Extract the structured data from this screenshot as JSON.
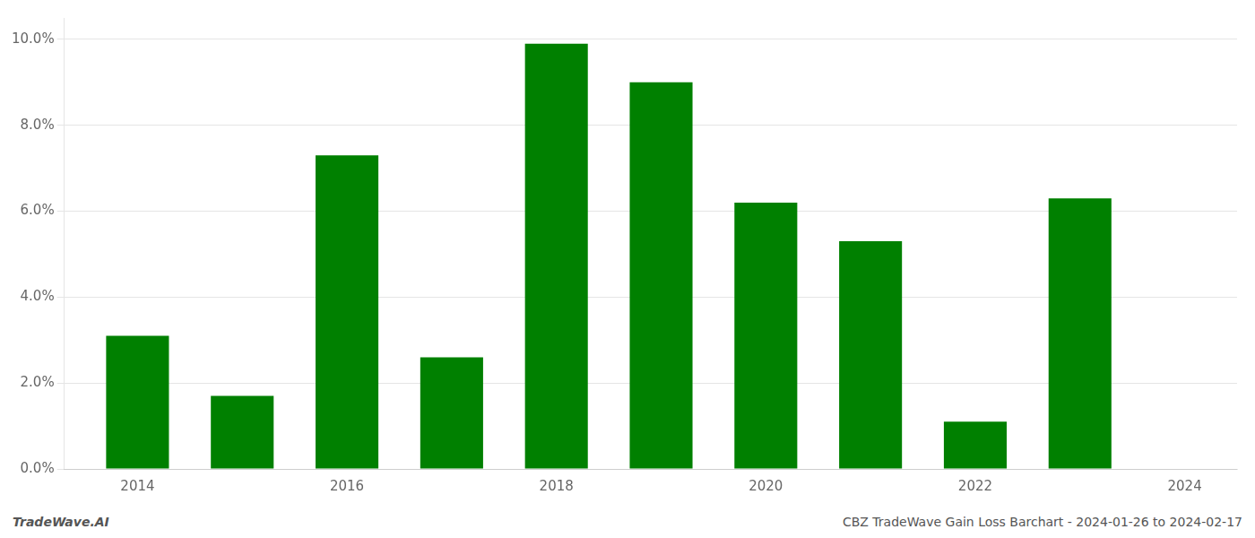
{
  "chart_data": {
    "type": "bar",
    "x": [
      2014,
      2015,
      2016,
      2017,
      2018,
      2019,
      2020,
      2021,
      2022,
      2023
    ],
    "values": [
      0.031,
      0.017,
      0.073,
      0.026,
      0.099,
      0.09,
      0.062,
      0.053,
      0.011,
      0.063
    ],
    "color": "#008000",
    "xlim": [
      2013.3,
      2024.5
    ],
    "xticks": [
      2014,
      2016,
      2018,
      2020,
      2022,
      2024
    ],
    "ylim": [
      0,
      0.105
    ],
    "yticks": [
      {
        "value": 0.0,
        "label": "0.0%"
      },
      {
        "value": 0.02,
        "label": "2.0%"
      },
      {
        "value": 0.04,
        "label": "4.0%"
      },
      {
        "value": 0.06,
        "label": "6.0%"
      },
      {
        "value": 0.08,
        "label": "8.0%"
      },
      {
        "value": 0.1,
        "label": "10.0%"
      }
    ],
    "grid": true,
    "annotations": [
      "TradeWave.AI",
      "CBZ TradeWave Gain Loss Barchart - 2024-01-26 to 2024-02-17"
    ]
  }
}
